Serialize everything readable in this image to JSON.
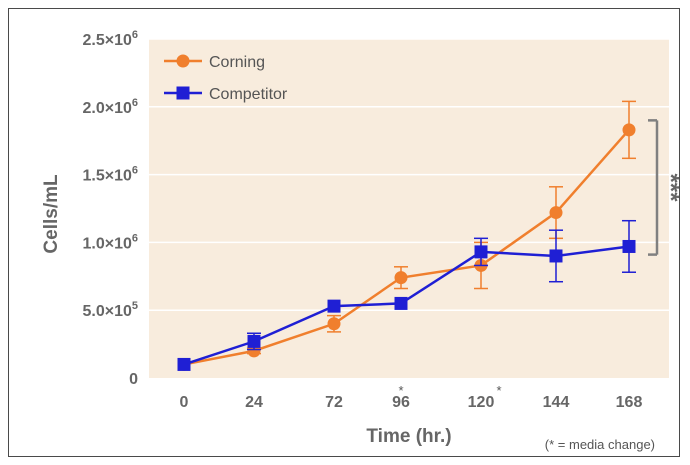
{
  "chart_data": {
    "type": "line",
    "xlabel": "Time (hr.)",
    "ylabel": "Cells/mL",
    "categories": [
      "0",
      "24",
      "72",
      "96",
      "120",
      "144",
      "168"
    ],
    "media_change_after": [
      "96",
      "120"
    ],
    "media_change_marker": "*",
    "y_ticks": [
      {
        "value": 0,
        "base": "0",
        "exp": ""
      },
      {
        "value": 500000,
        "base": "5.0×10",
        "exp": "5"
      },
      {
        "value": 1000000,
        "base": "1.0×10",
        "exp": "6"
      },
      {
        "value": 1500000,
        "base": "1.5×10",
        "exp": "6"
      },
      {
        "value": 2000000,
        "base": "2.0×10",
        "exp": "6"
      },
      {
        "value": 2500000,
        "base": "2.5×10",
        "exp": "6"
      }
    ],
    "ylim": [
      0,
      2500000
    ],
    "grid": true,
    "legend_position": "top-left",
    "background_color": "#f8ecdd",
    "series": [
      {
        "name": "Corning",
        "color": "#f07f2d",
        "marker": "circle",
        "values": [
          100000,
          200000,
          400000,
          740000,
          830000,
          1220000,
          1830000
        ],
        "errors": [
          0,
          20000,
          60000,
          80000,
          170000,
          190000,
          210000
        ]
      },
      {
        "name": "Competitor",
        "color": "#1f1fd4",
        "marker": "square",
        "values": [
          100000,
          270000,
          530000,
          550000,
          930000,
          900000,
          970000
        ],
        "errors": [
          0,
          60000,
          0,
          0,
          100000,
          190000,
          190000
        ]
      }
    ],
    "annotation": {
      "label": "***",
      "from": 910000,
      "to": 1900000
    },
    "footnote": "(* = media change)"
  }
}
